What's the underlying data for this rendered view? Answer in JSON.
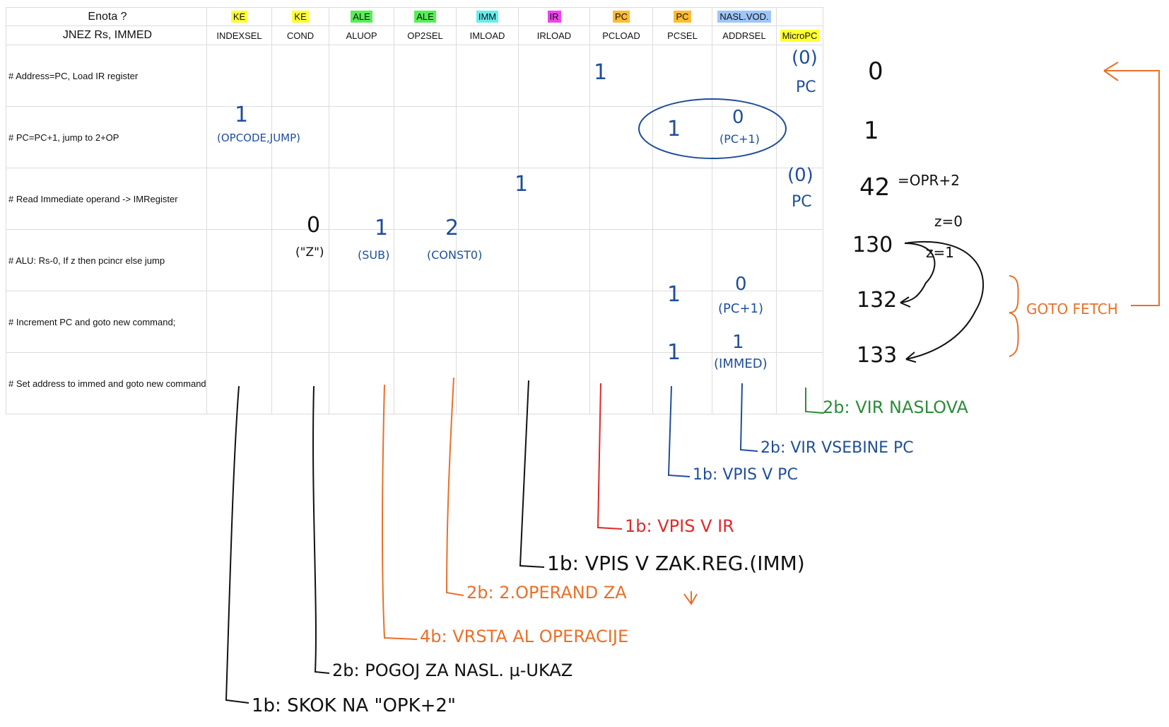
{
  "table": {
    "unit_label": "Enota ?",
    "instruction": "JNEZ Rs, IMMED",
    "columns": [
      {
        "unit": "KE",
        "unit_color": "#ffff33",
        "signal": "INDEXSEL"
      },
      {
        "unit": "KE",
        "unit_color": "#ffff33",
        "signal": "COND"
      },
      {
        "unit": "ALE",
        "unit_color": "#55ee55",
        "signal": "ALUOP"
      },
      {
        "unit": "ALE",
        "unit_color": "#55ee55",
        "signal": "OP2SEL"
      },
      {
        "unit": "IMM",
        "unit_color": "#66eeee",
        "signal": "IMLOAD"
      },
      {
        "unit": "IR",
        "unit_color": "#ee44ee",
        "signal": "IRLOAD"
      },
      {
        "unit": "PC",
        "unit_color": "#ffbb33",
        "signal": "PCLOAD"
      },
      {
        "unit": "PC",
        "unit_color": "#ffbb33",
        "signal": "PCSEL"
      },
      {
        "unit": "NASL.VOD.",
        "unit_color": "#9fc5f8",
        "signal": "ADDRSEL"
      }
    ],
    "micropc_header": "MicroPC",
    "micropc_color": "#ffff33",
    "steps": [
      "# Address=PC, Load IR register",
      "# PC=PC+1, jump to 2+OP",
      "# Read Immediate operand -> IMRegister",
      "# ALU: Rs-0, If z then pcincr else jump",
      "# Increment PC and goto new command;",
      "# Set address to immed and goto new command"
    ]
  },
  "handwriting": {
    "row1": {
      "irload": "1",
      "addrsel": "(0)",
      "addrsel_note": "PC",
      "micropc": "0"
    },
    "row2": {
      "indexsel": "1",
      "indexsel_note": "(OPCODE,JUMP)",
      "pcload": "1",
      "pcsel": "0",
      "pcsel_note": "(PC+1)",
      "micropc": "1"
    },
    "row3": {
      "imload": "1",
      "addrsel": "(0)",
      "addrsel_note": "PC",
      "micropc": "42",
      "micropc_note": "=OPR+2"
    },
    "row4": {
      "cond": "0",
      "cond_note": "(\"Z\")",
      "aluop": "1",
      "aluop_note": "(SUB)",
      "op2sel": "2",
      "op2sel_note": "(CONST0)",
      "micropc": "130",
      "z0": "z=0",
      "z1": "z=1"
    },
    "row5": {
      "pcload": "1",
      "pcsel": "0",
      "pcsel_note": "(PC+1)",
      "micropc": "132"
    },
    "row6": {
      "pcload": "1",
      "pcsel": "1",
      "pcsel_note": "(IMMED)",
      "micropc": "133"
    },
    "goto_fetch": "GOTO FETCH",
    "legend": {
      "addrsel": "2b: VIR NASLOVA",
      "pcsel": "2b: VIR VSEBINE PC",
      "pcload": "1b: VPIS V PC",
      "irload": "1b: VPIS V IR",
      "imload": "1b: VPIS V ZAK.REG.(IMM)",
      "op2sel": "2b: 2.OPERAND ZA",
      "aluop": "4b: VRSTA AL OPERACIJE",
      "cond": "2b: POGOJ ZA NASL. µ-UKAZ",
      "indexsel": "1b: SKOK NA \"OPK+2\""
    },
    "ink_colors": {
      "blue": "#1f4e99",
      "black": "#111111",
      "orange": "#e8702a",
      "red": "#dd2a2a",
      "green": "#2e8b3a"
    }
  }
}
